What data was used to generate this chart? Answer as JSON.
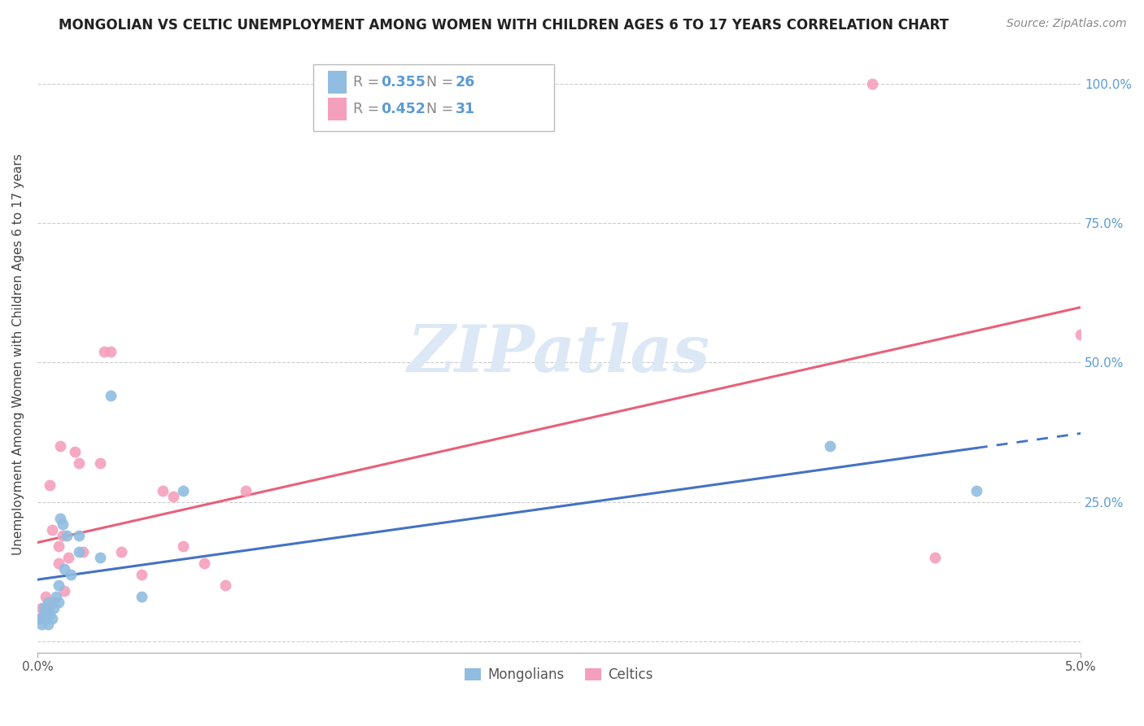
{
  "title": "MONGOLIAN VS CELTIC UNEMPLOYMENT AMONG WOMEN WITH CHILDREN AGES 6 TO 17 YEARS CORRELATION CHART",
  "source": "Source: ZipAtlas.com",
  "ylabel": "Unemployment Among Women with Children Ages 6 to 17 years",
  "xlim": [
    0.0,
    0.05
  ],
  "ylim": [
    -0.02,
    1.05
  ],
  "yticks": [
    0.0,
    0.25,
    0.5,
    0.75,
    1.0
  ],
  "ytick_labels_left": [
    "",
    "",
    "",
    "",
    ""
  ],
  "ytick_labels_right": [
    "",
    "25.0%",
    "50.0%",
    "75.0%",
    "100.0%"
  ],
  "xtick_vals": [
    0.0,
    0.05
  ],
  "xtick_labels": [
    "0.0%",
    "5.0%"
  ],
  "mongolian_R": "0.355",
  "mongolian_N": "26",
  "celtic_R": "0.452",
  "celtic_N": "31",
  "mongolian_color": "#90bde0",
  "celtic_color": "#f4a0bc",
  "mongolian_line_color": "#4472c4",
  "celtic_line_color": "#e8607a",
  "watermark_color": "#dce8f5",
  "mongolian_x": [
    0.0001,
    0.0002,
    0.0003,
    0.0003,
    0.0004,
    0.0005,
    0.0005,
    0.0006,
    0.0007,
    0.0008,
    0.0009,
    0.001,
    0.001,
    0.0011,
    0.0012,
    0.0013,
    0.0014,
    0.0016,
    0.002,
    0.002,
    0.003,
    0.0035,
    0.005,
    0.007,
    0.038,
    0.045
  ],
  "mongolian_y": [
    0.04,
    0.03,
    0.05,
    0.06,
    0.04,
    0.03,
    0.07,
    0.05,
    0.04,
    0.06,
    0.08,
    0.07,
    0.1,
    0.22,
    0.21,
    0.13,
    0.19,
    0.12,
    0.16,
    0.19,
    0.15,
    0.44,
    0.08,
    0.27,
    0.35,
    0.27
  ],
  "celtic_x": [
    0.0001,
    0.0002,
    0.0003,
    0.0004,
    0.0005,
    0.0006,
    0.0007,
    0.0008,
    0.001,
    0.001,
    0.0011,
    0.0012,
    0.0013,
    0.0015,
    0.0018,
    0.002,
    0.0022,
    0.003,
    0.0032,
    0.0035,
    0.004,
    0.005,
    0.006,
    0.0065,
    0.007,
    0.008,
    0.009,
    0.01,
    0.04,
    0.043,
    0.05
  ],
  "celtic_y": [
    0.04,
    0.06,
    0.05,
    0.08,
    0.06,
    0.28,
    0.2,
    0.07,
    0.17,
    0.14,
    0.35,
    0.19,
    0.09,
    0.15,
    0.34,
    0.32,
    0.16,
    0.32,
    0.52,
    0.52,
    0.16,
    0.12,
    0.27,
    0.26,
    0.17,
    0.14,
    0.1,
    0.27,
    1.0,
    0.15,
    0.55
  ]
}
